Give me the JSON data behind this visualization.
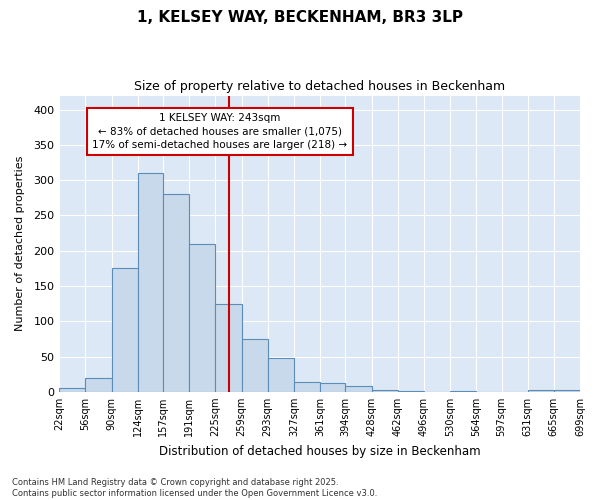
{
  "title": "1, KELSEY WAY, BECKENHAM, BR3 3LP",
  "subtitle": "Size of property relative to detached houses in Beckenham",
  "xlabel": "Distribution of detached houses by size in Beckenham",
  "ylabel": "Number of detached properties",
  "property_label": "1 KELSEY WAY: 243sqm",
  "annotation_line1": "← 83% of detached houses are smaller (1,075)",
  "annotation_line2": "17% of semi-detached houses are larger (218) →",
  "bar_left_edges": [
    22,
    56,
    90,
    124,
    157,
    191,
    225,
    259,
    293,
    327,
    361,
    394,
    428,
    462,
    496,
    530,
    564,
    597,
    631,
    665
  ],
  "bar_widths": [
    34,
    34,
    34,
    33,
    34,
    34,
    34,
    34,
    34,
    34,
    33,
    34,
    34,
    34,
    34,
    34,
    33,
    34,
    34,
    34
  ],
  "bar_heights": [
    6,
    20,
    175,
    310,
    280,
    210,
    125,
    75,
    48,
    14,
    13,
    8,
    2,
    1,
    0,
    1,
    0,
    0,
    3,
    2
  ],
  "tick_labels": [
    "22sqm",
    "56sqm",
    "90sqm",
    "124sqm",
    "157sqm",
    "191sqm",
    "225sqm",
    "259sqm",
    "293sqm",
    "327sqm",
    "361sqm",
    "394sqm",
    "428sqm",
    "462sqm",
    "496sqm",
    "530sqm",
    "564sqm",
    "597sqm",
    "631sqm",
    "665sqm",
    "699sqm"
  ],
  "bar_color": "#c8d9eb",
  "bar_edge_color": "#5b8db8",
  "vline_color": "#cc0000",
  "vline_x": 243,
  "annotation_box_edge_color": "#cc0000",
  "annotation_bg": "#ffffff",
  "fig_bg_color": "#ffffff",
  "plot_bg_color": "#dce8f5",
  "grid_color": "#ffffff",
  "ylim": [
    0,
    420
  ],
  "yticks": [
    0,
    50,
    100,
    150,
    200,
    250,
    300,
    350,
    400
  ],
  "footnote1": "Contains HM Land Registry data © Crown copyright and database right 2025.",
  "footnote2": "Contains public sector information licensed under the Open Government Licence v3.0."
}
